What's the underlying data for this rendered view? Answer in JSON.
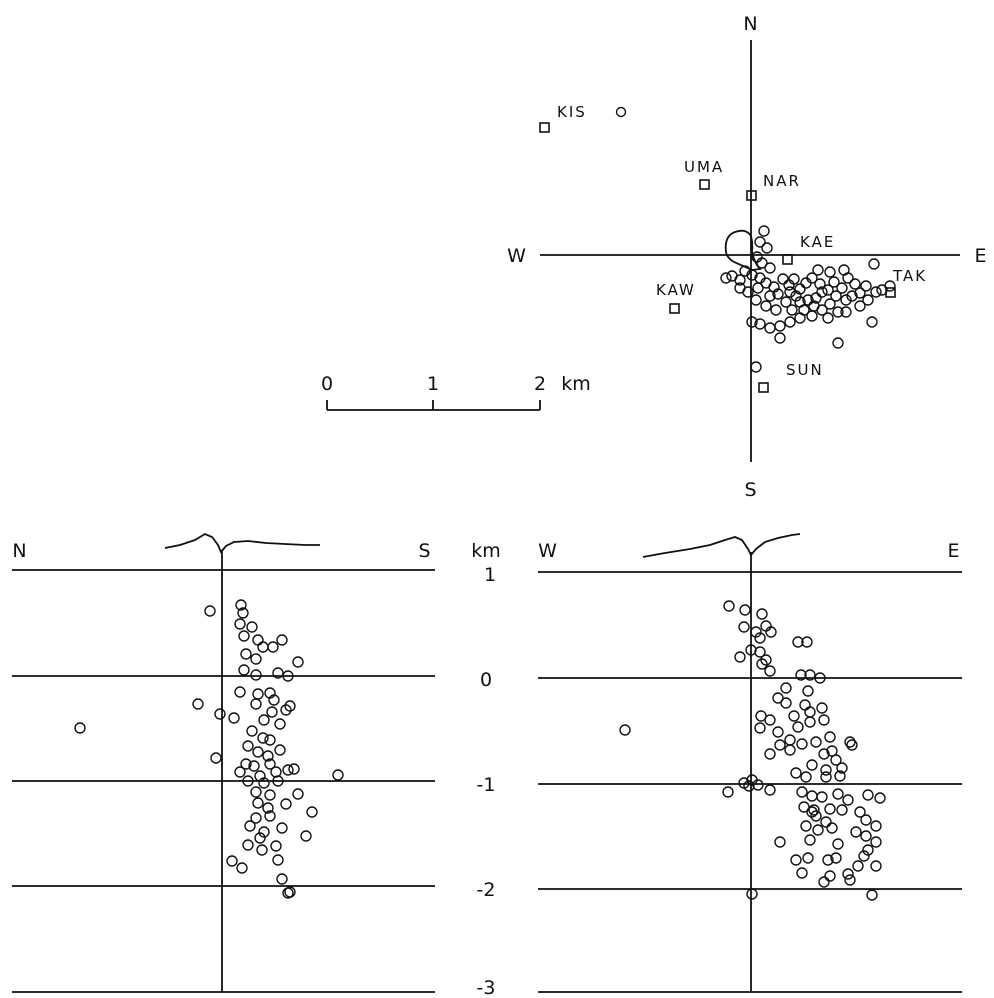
{
  "map": {
    "north": "N",
    "south": "S",
    "west": "W",
    "east": "E",
    "stations": [
      {
        "name": "KIS",
        "symbol": "square",
        "extra_circle": true
      },
      {
        "name": "UMA",
        "symbol": "square"
      },
      {
        "name": "NAR",
        "symbol": "square"
      },
      {
        "name": "KAE",
        "symbol": "square"
      },
      {
        "name": "TAK",
        "symbol": "square"
      },
      {
        "name": "KAW",
        "symbol": "square"
      },
      {
        "name": "SUN",
        "symbol": "square"
      }
    ],
    "scale": {
      "ticks": [
        "0",
        "1",
        "2"
      ],
      "unit": "km"
    }
  },
  "sections": {
    "ns": {
      "left": "N",
      "right": "S"
    },
    "we": {
      "left": "W",
      "right": "E"
    },
    "depth_unit": "km",
    "depth_ticks": [
      "1",
      "0",
      "-1",
      "-2",
      "-3"
    ]
  }
}
